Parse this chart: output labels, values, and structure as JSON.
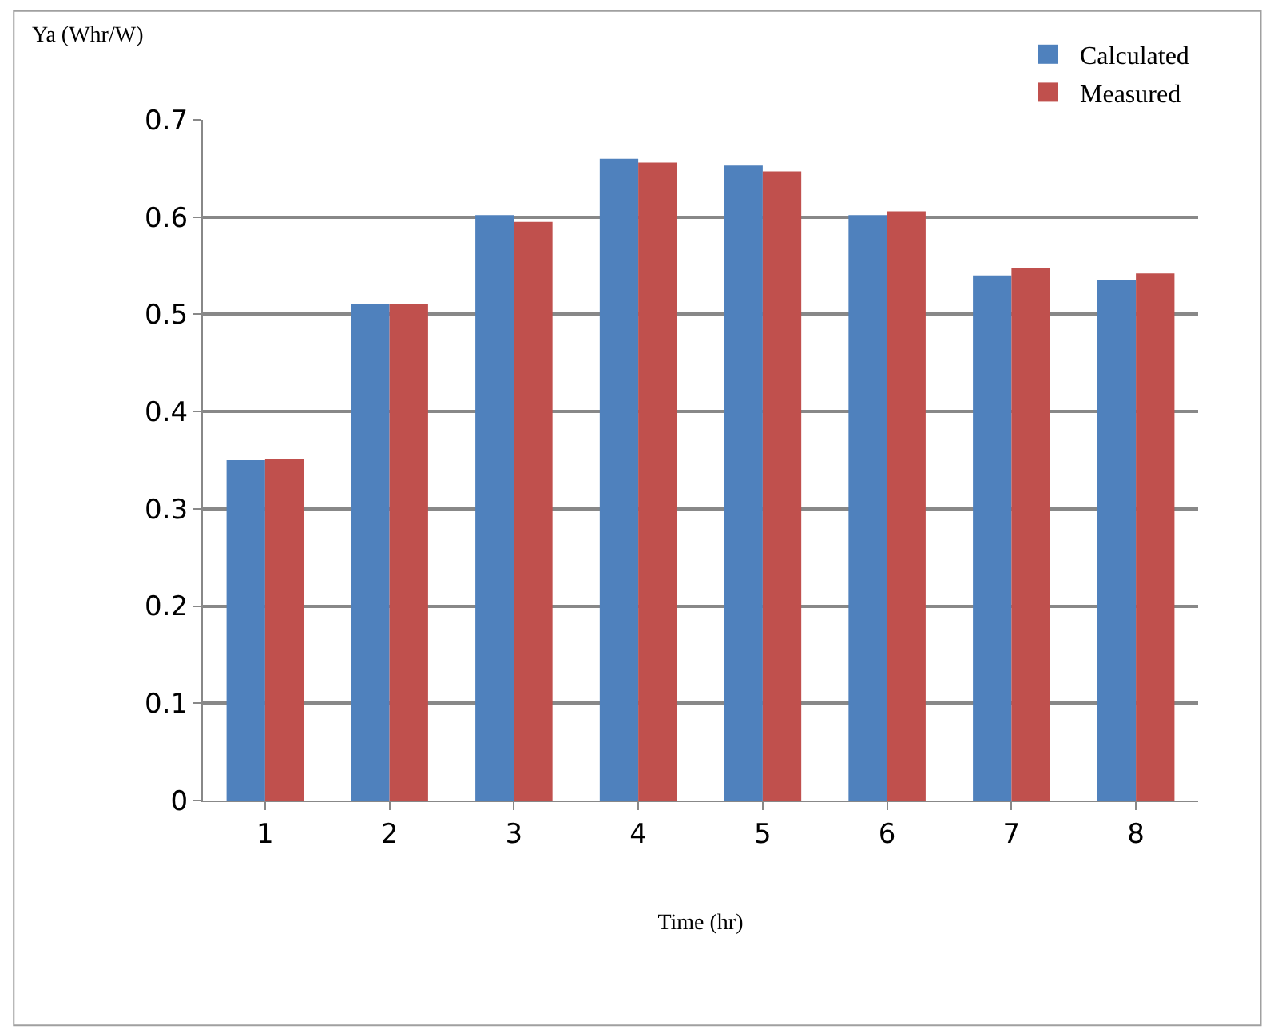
{
  "chart_data": {
    "type": "bar",
    "xlabel": "Time (hr)",
    "ylabel": "Ya (Whr/W)",
    "categories": [
      "1",
      "2",
      "3",
      "4",
      "5",
      "6",
      "7",
      "8"
    ],
    "series": [
      {
        "name": "Calculated",
        "color": "#4f81bd",
        "values": [
          0.35,
          0.511,
          0.602,
          0.66,
          0.653,
          0.602,
          0.54,
          0.535
        ]
      },
      {
        "name": "Measured",
        "color": "#c0504d",
        "values": [
          0.351,
          0.511,
          0.595,
          0.656,
          0.647,
          0.606,
          0.548,
          0.542
        ]
      }
    ],
    "ylim": [
      0,
      0.7
    ],
    "yticks": [
      {
        "value": 0,
        "label": "0"
      },
      0.1,
      0.2,
      0.3,
      0.4,
      0.5,
      0.6,
      0.7
    ],
    "grid": "y",
    "legend": "top right"
  }
}
